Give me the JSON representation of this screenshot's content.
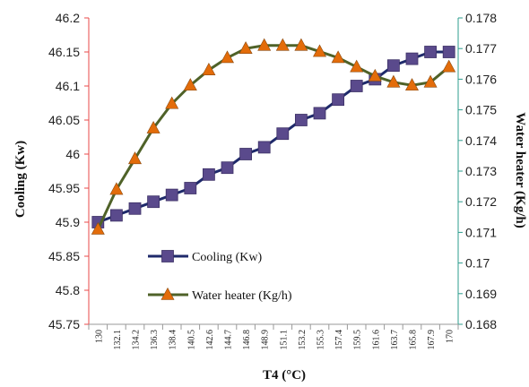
{
  "chart_data": {
    "type": "line",
    "x": [
      "130",
      "132.1",
      "134.2",
      "136.3",
      "138.4",
      "140.5",
      "142.6",
      "144.7",
      "146.8",
      "148.9",
      "151.1",
      "153.2",
      "155.3",
      "157.4",
      "159.5",
      "161.6",
      "163.7",
      "165.8",
      "167.9",
      "170"
    ],
    "xlabel": "T4 (°C)",
    "ylabel_left": "Cooling (Kw)",
    "ylabel_right": "Water heater (Kg/h)",
    "ylim_left": [
      45.75,
      46.2
    ],
    "ylim_right": [
      0.168,
      0.178
    ],
    "yticks_left": [
      "45.75",
      "45.8",
      "45.85",
      "45.9",
      "45.95",
      "46",
      "46.05",
      "46.1",
      "46.15",
      "46.2"
    ],
    "yticks_right": [
      "0.168",
      "0.169",
      "0.17",
      "0.171",
      "0.172",
      "0.173",
      "0.174",
      "0.175",
      "0.176",
      "0.177",
      "0.178"
    ],
    "grid": false,
    "legend_position": "bottom-left",
    "series": [
      {
        "name": "Cooling (Kw)",
        "axis": "left",
        "marker": "square",
        "line_color": "#1f2a6b",
        "marker_color": "#5a4a8c",
        "values": [
          45.9,
          45.91,
          45.92,
          45.93,
          45.94,
          45.95,
          45.97,
          45.98,
          46.0,
          46.01,
          46.03,
          46.05,
          46.06,
          46.08,
          46.1,
          46.11,
          46.13,
          46.14,
          46.15,
          46.15
        ]
      },
      {
        "name": "Water heater (Kg/h)",
        "axis": "right",
        "marker": "triangle",
        "line_color": "#4f6228",
        "marker_color": "#e36c0a",
        "values": [
          0.1711,
          0.1724,
          0.1734,
          0.1744,
          0.1752,
          0.1758,
          0.1763,
          0.1767,
          0.177,
          0.1771,
          0.1771,
          0.1771,
          0.1769,
          0.1767,
          0.1764,
          0.1761,
          0.1759,
          0.1758,
          0.1759,
          0.1764
        ]
      }
    ]
  }
}
